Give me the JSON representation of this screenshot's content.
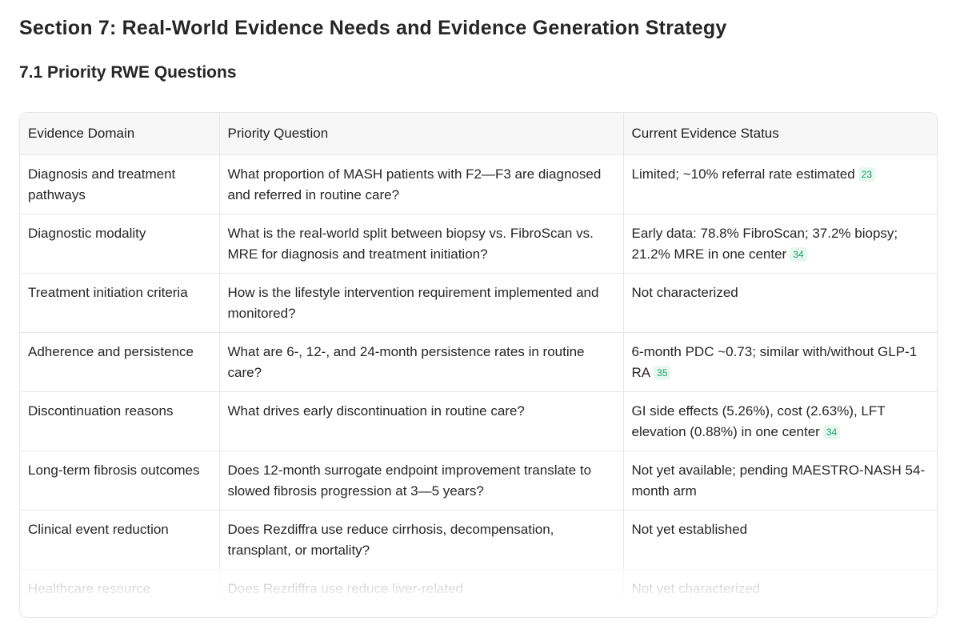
{
  "page_title": "Section 7: Real-World Evidence Needs and Evidence Generation Strategy",
  "section_title": "7.1 Priority RWE Questions",
  "table": {
    "headers": [
      "Evidence Domain",
      "Priority Question",
      "Current Evidence Status"
    ],
    "rows": [
      {
        "domain": "Diagnosis and treatment pathways",
        "question": "What proportion of MASH patients with F2—F3 are diagnosed and referred in routine care?",
        "status": "Limited; ~10% referral rate estimated",
        "cite": "23"
      },
      {
        "domain": "Diagnostic modality",
        "question": "What is the real-world split between biopsy vs. FibroScan vs. MRE for diagnosis and treatment initiation?",
        "status": "Early data: 78.8% FibroScan; 37.2% biopsy; 21.2% MRE in one center",
        "cite": "34"
      },
      {
        "domain": "Treatment initiation criteria",
        "question": "How is the lifestyle intervention requirement implemented and monitored?",
        "status": "Not characterized",
        "cite": ""
      },
      {
        "domain": "Adherence and persistence",
        "question": "What are 6-, 12-, and 24-month persistence rates in routine care?",
        "status": "6-month PDC ~0.73; similar with/without GLP-1 RA",
        "cite": "35"
      },
      {
        "domain": "Discontinuation reasons",
        "question": "What drives early discontinuation in routine care?",
        "status": "GI side effects (5.26%), cost (2.63%), LFT elevation (0.88%) in one center",
        "cite": "34"
      },
      {
        "domain": "Long-term fibrosis outcomes",
        "question": "Does 12-month surrogate endpoint improvement translate to slowed fibrosis progression at 3—5 years?",
        "status": "Not yet available; pending MAESTRO-NASH 54-month arm",
        "cite": ""
      },
      {
        "domain": "Clinical event reduction",
        "question": "Does Rezdiffra use reduce cirrhosis, decompensation, transplant, or mortality?",
        "status": "Not yet established",
        "cite": ""
      },
      {
        "domain": "Healthcare resource",
        "question": "Does Rezdiffra use reduce liver-related",
        "status": "Not yet characterized",
        "cite": ""
      }
    ]
  }
}
